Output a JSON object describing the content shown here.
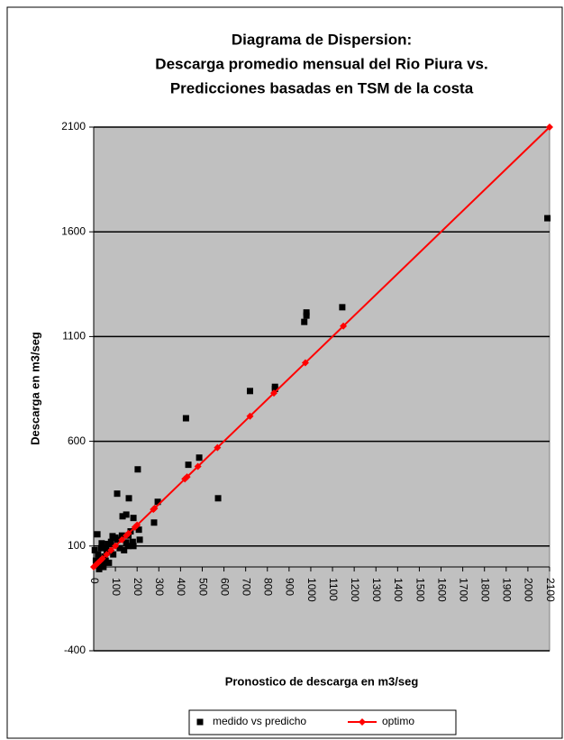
{
  "chart_data": {
    "type": "scatter",
    "title": [
      "Diagrama de Dispersion:",
      "Descarga promedio mensual del Rio Piura vs.",
      "Predicciones basadas en TSM de la costa"
    ],
    "xlabel": "Pronostico de descarga en m3/seg",
    "ylabel": "Descarga en m3/seg",
    "xlim": [
      0,
      2100
    ],
    "ylim": [
      -400,
      2100
    ],
    "xticks": [
      0,
      100,
      200,
      300,
      400,
      500,
      600,
      700,
      800,
      900,
      1000,
      1100,
      1200,
      1300,
      1400,
      1500,
      1600,
      1700,
      1800,
      1900,
      2000,
      2100
    ],
    "yticks": [
      -400,
      100,
      600,
      1100,
      1600,
      2100
    ],
    "grid": true,
    "legend": "bottom",
    "series": [
      {
        "name": "medido vs predicho",
        "color": "#000000",
        "marker": "square",
        "x": [
          2090,
          1145,
          980,
          980,
          970,
          720,
          835,
          835,
          425,
          436,
          486,
          573,
          203,
          108,
          162,
          150,
          133,
          183,
          295,
          278,
          208,
          212,
          158,
          183,
          150,
          87,
          79,
          17,
          37,
          58,
          20,
          30,
          10,
          40,
          50,
          60,
          15,
          25,
          45,
          5,
          35,
          70,
          55,
          90,
          65,
          80,
          100,
          120,
          110,
          130,
          140,
          160,
          180,
          170
        ],
        "y": [
          1665,
          1240,
          1215,
          1200,
          1170,
          840,
          860,
          850,
          710,
          488,
          522,
          328,
          466,
          350,
          328,
          250,
          242,
          234,
          311,
          212,
          178,
          130,
          100,
          100,
          117,
          147,
          109,
          156,
          113,
          91,
          60,
          40,
          30,
          20,
          50,
          70,
          10,
          -10,
          0,
          80,
          90,
          20,
          30,
          60,
          110,
          120,
          140,
          90,
          130,
          150,
          80,
          150,
          120,
          170
        ]
      },
      {
        "name": "optimo",
        "color": "#ff0000",
        "marker": "diamond",
        "line": true,
        "x": [
          0,
          10,
          20,
          30,
          40,
          60,
          80,
          100,
          130,
          150,
          160,
          190,
          200,
          275,
          280,
          420,
          430,
          480,
          570,
          720,
          830,
          975,
          1150,
          2100
        ],
        "y": [
          0,
          10,
          20,
          30,
          40,
          60,
          80,
          100,
          130,
          150,
          160,
          190,
          200,
          275,
          280,
          420,
          430,
          480,
          570,
          720,
          830,
          975,
          1150,
          2100
        ]
      }
    ]
  }
}
